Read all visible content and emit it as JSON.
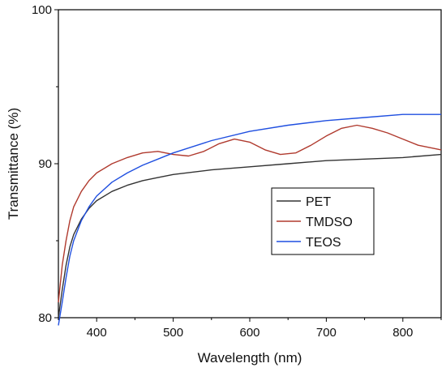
{
  "chart_data": {
    "type": "line",
    "xlabel": "Wavelength (nm)",
    "ylabel": "Transmittance (%)",
    "xlim": [
      350,
      850
    ],
    "ylim": [
      80,
      100
    ],
    "x_ticks": [
      400,
      500,
      600,
      700,
      800
    ],
    "y_ticks": [
      80,
      90,
      100
    ],
    "grid": false,
    "legend_position": "center-right",
    "series": [
      {
        "name": "PET",
        "color": "#333333",
        "x": [
          350,
          355,
          360,
          365,
          370,
          380,
          390,
          400,
          420,
          440,
          460,
          480,
          500,
          550,
          600,
          650,
          700,
          750,
          800,
          850
        ],
        "y": [
          80.0,
          81.8,
          83.4,
          84.6,
          85.4,
          86.4,
          87.1,
          87.6,
          88.2,
          88.6,
          88.9,
          89.1,
          89.3,
          89.6,
          89.8,
          90.0,
          90.2,
          90.3,
          90.4,
          90.6
        ]
      },
      {
        "name": "TMDSO",
        "color": "#b03a2e",
        "x": [
          350,
          355,
          360,
          365,
          370,
          380,
          390,
          400,
          420,
          440,
          460,
          480,
          500,
          520,
          540,
          560,
          580,
          600,
          620,
          640,
          660,
          680,
          700,
          720,
          740,
          760,
          780,
          800,
          820,
          850
        ],
        "y": [
          81.0,
          83.4,
          85.0,
          86.3,
          87.2,
          88.2,
          88.9,
          89.4,
          90.0,
          90.4,
          90.7,
          90.8,
          90.6,
          90.5,
          90.8,
          91.3,
          91.6,
          91.4,
          90.9,
          90.6,
          90.7,
          91.2,
          91.8,
          92.3,
          92.5,
          92.3,
          92.0,
          91.6,
          91.2,
          90.9
        ]
      },
      {
        "name": "TEOS",
        "color": "#1f4fe0",
        "x": [
          350,
          355,
          360,
          365,
          370,
          380,
          390,
          400,
          420,
          440,
          460,
          480,
          500,
          550,
          600,
          650,
          700,
          750,
          800,
          850
        ],
        "y": [
          79.5,
          81.0,
          82.6,
          84.0,
          85.0,
          86.3,
          87.2,
          87.9,
          88.8,
          89.4,
          89.9,
          90.3,
          90.7,
          91.5,
          92.1,
          92.5,
          92.8,
          93.0,
          93.2,
          93.2
        ]
      }
    ]
  }
}
